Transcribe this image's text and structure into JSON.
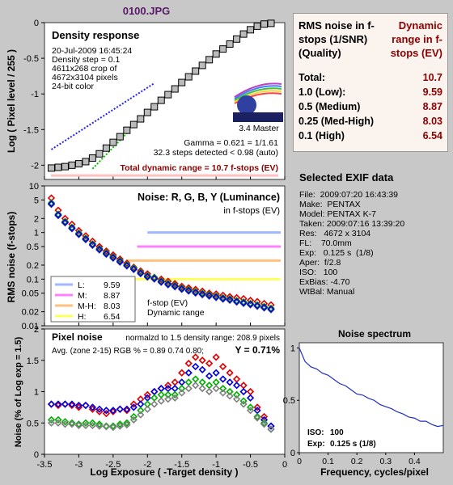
{
  "page_title": "0100.JPG",
  "colors": {
    "bg": "#c8c8c8",
    "plot_bg": "#ffffff",
    "accent_red": "#8b0000",
    "title_purple": "#5a1a6a"
  },
  "density": {
    "title": "Density response",
    "info": [
      "20-Jul-2009 16:45:24",
      "Density step = 0.1",
      "4611x268 crop of",
      "4672x3104 pixels",
      "24-bit color"
    ],
    "logo": "imatest",
    "logo_sub": "3.4  Master",
    "gamma": "Gamma = 0.621 = 1/1.61",
    "steps": "32.3 steps detected < 0.98 (auto)",
    "total_dr": "Total dynamic range = 10.7 f-stops (EV)",
    "ylabel": "Log ( Pixel level / 255 )",
    "yticks": [
      "0",
      "-0.5",
      "-1",
      "-1.5",
      "-2"
    ]
  },
  "noise_fstop": {
    "title": "Noise: R, G, B, Y (Luminance)",
    "subtitle": "in f-stops (EV)",
    "ylabel": "RMS noise (f-stops)",
    "yticks": [
      "10",
      "5",
      "2",
      "1",
      "0.5",
      "0.2",
      "0.1",
      "0.05",
      "0.02",
      "0.01"
    ],
    "legend": [
      {
        "label": "L:",
        "value": "9.59",
        "color": "#a0b8ff"
      },
      {
        "label": "M:",
        "value": "8.87",
        "color": "#ff80ff"
      },
      {
        "label": "M-H:",
        "value": "8.03",
        "color": "#ffc080"
      },
      {
        "label": "H:",
        "value": "6.54",
        "color": "#ffff60"
      }
    ],
    "note1": "f-stop (EV)",
    "note2": "Dynamic range"
  },
  "pixel_noise": {
    "title": "Pixel noise",
    "norm": "normalzd to 1.5 density range: 208.9 pixels",
    "avg": "Avg. (zone 2-15) RGB % = 0.89  0.74  0.80;",
    "y": "Y = 0.71%",
    "ylabel": "Noise (% of Log exp = 1.5)",
    "yticks": [
      "2",
      "1.5",
      "1",
      "0.5",
      "0"
    ],
    "xlabel": "Log Exposure ( -Target density )",
    "xticks": [
      "-3.5",
      "-3",
      "-2.5",
      "-2",
      "-1.5",
      "-1",
      "-0.5",
      "0"
    ]
  },
  "rms": {
    "head_left": "RMS noise in f-stops (1/SNR) (Quality)",
    "head_right": "Dynamic range in f-stops (EV)",
    "rows": [
      {
        "k": "Total:",
        "v": "10.7"
      },
      {
        "k": "1.0   (Low):",
        "v": "9.59"
      },
      {
        "k": "0.5   (Medium)",
        "v": "8.87"
      },
      {
        "k": "0.25 (Med-High)",
        "v": "8.03"
      },
      {
        "k": "0.1   (High)",
        "v": "6.54"
      }
    ]
  },
  "exif": {
    "title": "Selected EXIF data",
    "lines": [
      "File:  2009:07:20 16:43:39",
      "Make:  PENTAX",
      "Model: PENTAX K-7",
      "Taken: 2009:07:16 13:39:20",
      "Res:   4672 x 3104",
      "FL:    70.0mm",
      "Exp:   0.125 s  (1/8)",
      "Aper:  f/2.8",
      "ISO:   100",
      "ExBias: -4.70",
      "WtBal: Manual"
    ]
  },
  "spectrum": {
    "title": "Noise spectrum",
    "xlabel": "Frequency, cycles/pixel",
    "yticks": [
      "1",
      "0.5",
      "0"
    ],
    "xticks": [
      "0",
      "0.1",
      "0.2",
      "0.3",
      "0.4"
    ],
    "iso_label": "ISO:",
    "iso_value": "100",
    "exp_label": "Exp:",
    "exp_value": "0.125 s   (1/8)"
  },
  "chart_data": [
    {
      "type": "scatter",
      "title": "Density response",
      "ylabel": "Log ( Pixel level / 255 )",
      "ylim": [
        -2.2,
        0
      ],
      "x": [
        -3.4,
        -3.3,
        -3.2,
        -3.1,
        -3.0,
        -2.9,
        -2.8,
        -2.7,
        -2.6,
        -2.5,
        -2.4,
        -2.3,
        -2.2,
        -2.1,
        -2.0,
        -1.9,
        -1.8,
        -1.7,
        -1.6,
        -1.5,
        -1.4,
        -1.3,
        -1.2,
        -1.1,
        -1.0,
        -0.9,
        -0.8,
        -0.7,
        -0.6,
        -0.5,
        -0.4,
        -0.3,
        -0.2
      ],
      "y": [
        -2.04,
        -2.03,
        -2.02,
        -2.0,
        -1.98,
        -1.95,
        -1.9,
        -1.84,
        -1.76,
        -1.68,
        -1.6,
        -1.51,
        -1.43,
        -1.35,
        -1.26,
        -1.18,
        -1.09,
        -1.01,
        -0.93,
        -0.84,
        -0.76,
        -0.68,
        -0.6,
        -0.52,
        -0.44,
        -0.37,
        -0.3,
        -0.23,
        -0.16,
        -0.1,
        -0.05,
        -0.02,
        -0.01
      ]
    },
    {
      "type": "scatter",
      "title": "Noise: R, G, B, Y (Luminance)",
      "ylabel": "RMS noise (f-stops)",
      "x": [
        -3.4,
        -3.3,
        -3.2,
        -3.1,
        -3.0,
        -2.9,
        -2.8,
        -2.7,
        -2.6,
        -2.5,
        -2.4,
        -2.3,
        -2.2,
        -2.1,
        -2.0,
        -1.9,
        -1.8,
        -1.7,
        -1.6,
        -1.5,
        -1.4,
        -1.3,
        -1.2,
        -1.1,
        -1.0,
        -0.9,
        -0.8,
        -0.7,
        -0.6,
        -0.5,
        -0.4,
        -0.3,
        -0.2
      ],
      "series": [
        {
          "name": "R",
          "values": [
            5.5,
            3.0,
            2.0,
            1.5,
            1.1,
            0.85,
            0.65,
            0.5,
            0.4,
            0.33,
            0.27,
            0.22,
            0.18,
            0.15,
            0.13,
            0.11,
            0.1,
            0.09,
            0.08,
            0.07,
            0.065,
            0.06,
            0.055,
            0.05,
            0.048,
            0.045,
            0.042,
            0.04,
            0.038,
            0.035,
            0.033,
            0.03,
            0.028
          ]
        },
        {
          "name": "Y",
          "values": [
            4.0,
            2.3,
            1.6,
            1.2,
            0.9,
            0.7,
            0.53,
            0.42,
            0.34,
            0.28,
            0.23,
            0.19,
            0.16,
            0.13,
            0.11,
            0.1,
            0.085,
            0.075,
            0.068,
            0.06,
            0.055,
            0.05,
            0.046,
            0.043,
            0.04,
            0.037,
            0.035,
            0.032,
            0.03,
            0.028,
            0.026,
            0.024,
            0.022
          ]
        }
      ]
    },
    {
      "type": "scatter",
      "title": "Pixel noise",
      "ylabel": "Noise (% of Log exp = 1.5)",
      "xlabel": "Log Exposure ( -Target density )",
      "ylim": [
        0,
        2
      ],
      "x": [
        -3.4,
        -3.3,
        -3.2,
        -3.1,
        -3.0,
        -2.9,
        -2.8,
        -2.7,
        -2.6,
        -2.5,
        -2.4,
        -2.3,
        -2.2,
        -2.1,
        -2.0,
        -1.9,
        -1.8,
        -1.7,
        -1.6,
        -1.5,
        -1.4,
        -1.3,
        -1.2,
        -1.1,
        -1.0,
        -0.9,
        -0.8,
        -0.7,
        -0.6,
        -0.5,
        -0.4,
        -0.3,
        -0.2
      ],
      "series": [
        {
          "name": "R",
          "values": [
            0.8,
            0.78,
            0.8,
            0.78,
            0.75,
            0.78,
            0.72,
            0.68,
            0.65,
            0.68,
            0.72,
            0.7,
            0.8,
            0.88,
            0.95,
            1.0,
            1.05,
            1.1,
            1.15,
            1.3,
            1.45,
            1.55,
            1.5,
            1.45,
            1.55,
            1.4,
            1.3,
            1.2,
            1.1,
            1.0,
            0.75,
            0.6,
            0.45
          ]
        },
        {
          "name": "B",
          "values": [
            0.8,
            0.8,
            0.8,
            0.8,
            0.78,
            0.78,
            0.75,
            0.72,
            0.7,
            0.7,
            0.72,
            0.72,
            0.75,
            0.8,
            0.9,
            1.0,
            1.05,
            1.05,
            1.05,
            1.15,
            1.3,
            1.4,
            1.35,
            1.25,
            1.3,
            1.2,
            1.15,
            1.1,
            1.0,
            0.9,
            0.7,
            0.55,
            0.45
          ]
        },
        {
          "name": "G",
          "values": [
            0.55,
            0.55,
            0.52,
            0.5,
            0.48,
            0.5,
            0.5,
            0.48,
            0.45,
            0.45,
            0.48,
            0.5,
            0.6,
            0.7,
            0.8,
            0.9,
            0.95,
            0.95,
            0.95,
            1.05,
            1.15,
            1.2,
            1.15,
            1.1,
            1.15,
            1.05,
            1.0,
            0.95,
            0.85,
            0.75,
            0.6,
            0.5,
            0.4
          ]
        },
        {
          "name": "Y",
          "values": [
            0.5,
            0.5,
            0.48,
            0.48,
            0.46,
            0.46,
            0.46,
            0.45,
            0.44,
            0.43,
            0.45,
            0.47,
            0.55,
            0.63,
            0.72,
            0.8,
            0.85,
            0.88,
            0.9,
            0.98,
            1.05,
            1.1,
            1.05,
            1.0,
            1.05,
            0.98,
            0.93,
            0.88,
            0.8,
            0.7,
            0.58,
            0.48,
            0.4
          ]
        }
      ]
    },
    {
      "type": "line",
      "title": "Noise spectrum",
      "xlabel": "Frequency, cycles/pixel",
      "ylim": [
        0,
        1
      ],
      "x": [
        0,
        0.02,
        0.04,
        0.06,
        0.08,
        0.1,
        0.12,
        0.14,
        0.16,
        0.18,
        0.2,
        0.22,
        0.24,
        0.26,
        0.28,
        0.3,
        0.32,
        0.34,
        0.36,
        0.38,
        0.4,
        0.42,
        0.44,
        0.46,
        0.48,
        0.5
      ],
      "y": [
        1.0,
        0.87,
        0.82,
        0.8,
        0.76,
        0.74,
        0.7,
        0.66,
        0.64,
        0.6,
        0.56,
        0.55,
        0.52,
        0.5,
        0.46,
        0.44,
        0.42,
        0.39,
        0.37,
        0.34,
        0.33,
        0.3,
        0.3,
        0.27,
        0.25,
        0.26
      ]
    }
  ]
}
